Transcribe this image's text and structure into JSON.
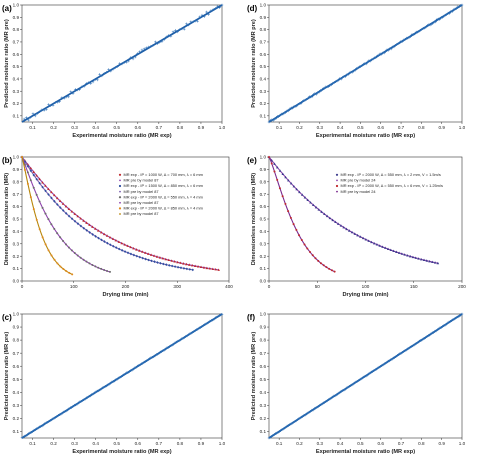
{
  "figure": {
    "colors": {
      "scatter": "#2a6db5",
      "line": "#1f5fa8",
      "black": "#222222"
    }
  },
  "chart_data": [
    {
      "id": "a",
      "panel_label": "(a)",
      "type": "scatter",
      "xlabel": "Experimental moisture ratio (MR exp)",
      "ylabel": "Predicted moisture ratio (MR pre)",
      "xlim": [
        0.05,
        1.0
      ],
      "ylim": [
        0.05,
        1.0
      ],
      "xticks": [
        0.1,
        0.2,
        0.3,
        0.4,
        0.5,
        0.6,
        0.7,
        0.8,
        0.9,
        1.0
      ],
      "yticks": [
        0.1,
        0.2,
        0.3,
        0.4,
        0.5,
        0.6,
        0.7,
        0.8,
        0.9,
        1.0
      ],
      "tick_labels_x": [
        "0.1",
        "0.2",
        "0.3",
        "0.4",
        "0.5",
        "0.6",
        "0.7",
        "0.8",
        "0.9",
        "1.0"
      ],
      "tick_labels_y": [
        "0.1",
        "0.2",
        "0.3",
        "0.4",
        "0.5",
        "0.6",
        "0.7",
        "0.8",
        "0.9",
        "1.0"
      ],
      "fit_line": {
        "x": [
          0.05,
          1.0
        ],
        "y": [
          0.05,
          1.0
        ]
      },
      "scatter_x_range": [
        0.06,
        1.0
      ],
      "scatter_points": 90,
      "spread": 0.018
    },
    {
      "id": "d",
      "panel_label": "(d)",
      "type": "scatter",
      "xlabel": "Experimental moisture ratio (MR exp)",
      "ylabel": "Predicted moisture ratio (MR pre)",
      "xlim": [
        0.05,
        1.0
      ],
      "ylim": [
        0.05,
        1.0
      ],
      "xticks": [
        0.1,
        0.2,
        0.3,
        0.4,
        0.5,
        0.6,
        0.7,
        0.8,
        0.9,
        1.0
      ],
      "yticks": [
        0.1,
        0.2,
        0.3,
        0.4,
        0.5,
        0.6,
        0.7,
        0.8,
        0.9,
        1.0
      ],
      "tick_labels_x": [
        "0.1",
        "0.2",
        "0.3",
        "0.4",
        "0.5",
        "0.6",
        "0.7",
        "0.8",
        "0.9",
        "1.0"
      ],
      "tick_labels_y": [
        "0.1",
        "0.2",
        "0.3",
        "0.4",
        "0.5",
        "0.6",
        "0.7",
        "0.8",
        "0.9",
        "1.0"
      ],
      "fit_line": {
        "x": [
          0.05,
          1.0
        ],
        "y": [
          0.05,
          1.0
        ]
      },
      "scatter_x_range": [
        0.05,
        1.0
      ],
      "scatter_points": 140,
      "spread": 0.008
    },
    {
      "id": "b",
      "panel_label": "(b)",
      "type": "line",
      "xlabel": "Drying time (min)",
      "ylabel": "Dimensionless moisture ratio (MR)",
      "xlim": [
        0,
        400
      ],
      "ylim": [
        0.0,
        1.0
      ],
      "xticks": [
        0,
        100,
        200,
        300,
        400
      ],
      "yticks": [
        0.0,
        0.1,
        0.2,
        0.3,
        0.4,
        0.5,
        0.6,
        0.7,
        0.8,
        0.9,
        1.0
      ],
      "tick_labels_x": [
        "0",
        "100",
        "200",
        "300",
        "400"
      ],
      "tick_labels_y": [
        "0.0",
        "0.1",
        "0.2",
        "0.3",
        "0.4",
        "0.5",
        "0.6",
        "0.7",
        "0.8",
        "0.9",
        "1.0"
      ],
      "legend": [
        "MR exp - IP = 1000 W, Δ = 700 mm, λ = 6 mm",
        "MR pre by model 87",
        "MR exp - IP = 1500 W, Δ = 850 mm, λ = 6 mm",
        "MR pre by model 87",
        "MR exp - IP = 2000 W, Δ = 550 mm, λ = 4 mm",
        "MR pre by model 87",
        "MR exp - IP = 2000 W, Δ = 850 mm, λ = 4 mm",
        "MR pre by model 87"
      ],
      "series": [
        {
          "exp_color": "#c0282d",
          "pre_color": "#8e44ad",
          "end_x": 380,
          "k": 0.005,
          "n": 1.04,
          "marker": "triangle"
        },
        {
          "exp_color": "#2e4fa0",
          "pre_color": "#7b5fb0",
          "end_x": 330,
          "k": 0.0065,
          "n": 1.02,
          "marker": "diamond"
        },
        {
          "exp_color": "#6b6b6b",
          "pre_color": "#8e44ad",
          "end_x": 170,
          "k": 0.0092,
          "n": 1.1,
          "marker": "circle"
        },
        {
          "exp_color": "#e08a1e",
          "pre_color": "#b8860b",
          "end_x": 97,
          "k": 0.0145,
          "n": 1.16,
          "marker": "circle"
        }
      ]
    },
    {
      "id": "e",
      "panel_label": "(e)",
      "type": "line",
      "xlabel": "Drying time (min)",
      "ylabel": "Dimensionless moisture ratio (MR)",
      "xlim": [
        0,
        200
      ],
      "ylim": [
        0.0,
        1.0
      ],
      "xticks": [
        0,
        50,
        100,
        150,
        200
      ],
      "yticks": [
        0.0,
        0.1,
        0.2,
        0.3,
        0.4,
        0.5,
        0.6,
        0.7,
        0.8,
        0.9,
        1.0
      ],
      "tick_labels_x": [
        "0",
        "50",
        "100",
        "150",
        "200"
      ],
      "tick_labels_y": [
        "0.0",
        "0.1",
        "0.2",
        "0.3",
        "0.4",
        "0.5",
        "0.6",
        "0.7",
        "0.8",
        "0.9",
        "1.0"
      ],
      "legend": [
        "MR exp - IP = 2000 W, Δ = 550 mm, λ = 2 mm, V = 1.5m/s",
        "MR pre by model 24",
        "MR exp - IP = 2000 W, Δ = 550 mm, λ = 6 mm, V = 1.25m/s",
        "MR pre by model 24"
      ],
      "series": [
        {
          "exp_color": "#3a3a8c",
          "pre_color": "#8e44ad",
          "end_x": 175,
          "k": 0.0095,
          "n": 1.03,
          "marker": "triangle"
        },
        {
          "exp_color": "#c0282d",
          "pre_color": "#7b2a8e",
          "end_x": 68,
          "k": 0.015,
          "n": 1.22,
          "marker": "circle"
        }
      ]
    },
    {
      "id": "c",
      "panel_label": "(c)",
      "type": "scatter",
      "xlabel": "Experimental moisture ratio (MR exp)",
      "ylabel": "Predicted moisture ratio (MR pre)",
      "xlim": [
        0.05,
        1.0
      ],
      "ylim": [
        0.05,
        1.0
      ],
      "xticks": [
        0.1,
        0.2,
        0.3,
        0.4,
        0.5,
        0.6,
        0.7,
        0.8,
        0.9,
        1.0
      ],
      "yticks": [
        0.1,
        0.2,
        0.3,
        0.4,
        0.5,
        0.6,
        0.7,
        0.8,
        0.9,
        1.0
      ],
      "tick_labels_x": [
        "0.1",
        "0.2",
        "0.3",
        "0.4",
        "0.5",
        "0.6",
        "0.7",
        "0.8",
        "0.9",
        "1.0"
      ],
      "tick_labels_y": [
        "0.1",
        "0.2",
        "0.3",
        "0.4",
        "0.5",
        "0.6",
        "0.7",
        "0.8",
        "0.9",
        "1.0"
      ],
      "fit_line": {
        "x": [
          0.05,
          1.0
        ],
        "y": [
          0.05,
          1.0
        ]
      },
      "scatter_x_range": [
        0.05,
        1.0
      ],
      "scatter_points": 150,
      "spread": 0.003
    },
    {
      "id": "f",
      "panel_label": "(f)",
      "type": "scatter",
      "xlabel": "Experimental moisture ratio (MR exp)",
      "ylabel": "Predicted moisture ratio (MR pre)",
      "xlim": [
        0.05,
        1.0
      ],
      "ylim": [
        0.05,
        1.0
      ],
      "xticks": [
        0.1,
        0.2,
        0.3,
        0.4,
        0.5,
        0.6,
        0.7,
        0.8,
        0.9,
        1.0
      ],
      "yticks": [
        0.1,
        0.2,
        0.3,
        0.4,
        0.5,
        0.6,
        0.7,
        0.8,
        0.9,
        1.0
      ],
      "tick_labels_x": [
        "0.1",
        "0.2",
        "0.3",
        "0.4",
        "0.5",
        "0.6",
        "0.7",
        "0.8",
        "0.9",
        "1.0"
      ],
      "tick_labels_y": [
        "0.1",
        "0.2",
        "0.3",
        "0.4",
        "0.5",
        "0.6",
        "0.7",
        "0.8",
        "0.9",
        "1.0"
      ],
      "fit_line": {
        "x": [
          0.05,
          1.0
        ],
        "y": [
          0.05,
          1.0
        ]
      },
      "scatter_x_range": [
        0.05,
        1.0
      ],
      "scatter_points": 150,
      "spread": 0.003
    }
  ]
}
